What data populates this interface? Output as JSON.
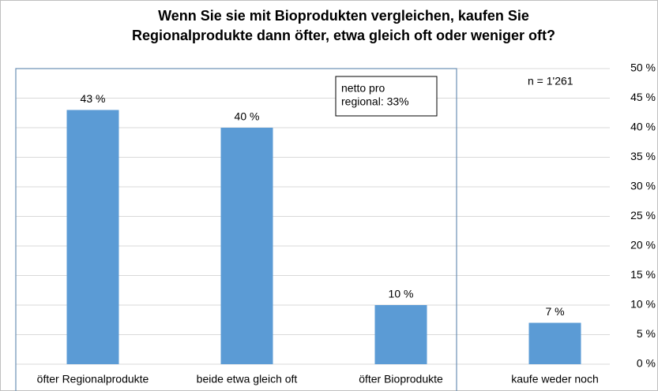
{
  "chart_data": {
    "type": "bar",
    "title": [
      "Wenn Sie sie mit Bioprodukten vergleichen, kaufen Sie",
      "Regionalprodukte dann öfter, etwa gleich oft oder weniger oft?"
    ],
    "categories": [
      "öfter Regionalprodukte",
      "beide etwa gleich oft",
      "öfter Bioprodukte",
      "kaufe weder noch"
    ],
    "values": [
      43,
      40,
      10,
      7
    ],
    "value_labels": [
      "43 %",
      "40 %",
      "10 %",
      "7 %"
    ],
    "color": "#5b9bd5",
    "ylim": [
      0,
      50
    ],
    "yticks": [
      {
        "value": 0,
        "label": "0 %"
      },
      {
        "value": 5,
        "label": "5 %"
      },
      {
        "value": 10,
        "label": "10 %"
      },
      {
        "value": 15,
        "label": "15 %"
      },
      {
        "value": 20,
        "label": "20 %"
      },
      {
        "value": 25,
        "label": "25 %"
      },
      {
        "value": 30,
        "label": "30 %"
      },
      {
        "value": 35,
        "label": "35 %"
      },
      {
        "value": 40,
        "label": "40 %"
      },
      {
        "value": 45,
        "label": "45 %"
      },
      {
        "value": 50,
        "label": "50 %"
      }
    ],
    "grid": true,
    "annotation_box": [
      "netto pro",
      "regional: 33%"
    ],
    "note": "n = 1'261"
  }
}
